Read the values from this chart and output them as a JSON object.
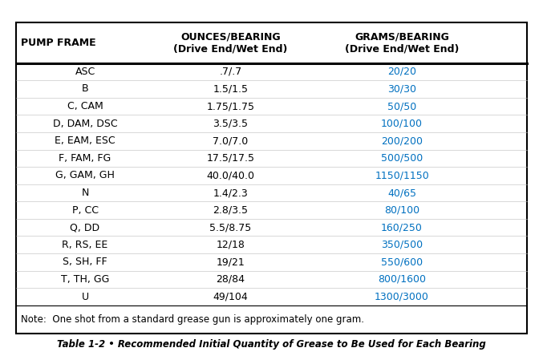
{
  "title": "Table 1-2 • Recommended Initial Quantity of Grease to Be Used for Each Bearing",
  "header_col1": "PUMP FRAME",
  "header_col2": "OUNCES/BEARING\n(Drive End/Wet End)",
  "header_col3": "GRAMS/BEARING\n(Drive End/Wet End)",
  "note": "Note:  One shot from a standard grease gun is approximately one gram.",
  "rows": [
    [
      "ASC",
      ".7/.7",
      "20/20"
    ],
    [
      "B",
      "1.5/1.5",
      "30/30"
    ],
    [
      "C, CAM",
      "1.75/1.75",
      "50/50"
    ],
    [
      "D, DAM, DSC",
      "3.5/3.5",
      "100/100"
    ],
    [
      "E, EAM, ESC",
      "7.0/7.0",
      "200/200"
    ],
    [
      "F, FAM, FG",
      "17.5/17.5",
      "500/500"
    ],
    [
      "G, GAM, GH",
      "40.0/40.0",
      "1150/1150"
    ],
    [
      "N",
      "1.4/2.3",
      "40/65"
    ],
    [
      "P, CC",
      "2.8/3.5",
      "80/100"
    ],
    [
      "Q, DD",
      "5.5/8.75",
      "160/250"
    ],
    [
      "R, RS, EE",
      "12/18",
      "350/500"
    ],
    [
      "S, SH, FF",
      "19/21",
      "550/600"
    ],
    [
      "T, TH, GG",
      "28/84",
      "800/1600"
    ],
    [
      "U",
      "49/104",
      "1300/3000"
    ]
  ],
  "header_color": "#000000",
  "row_text_color": "#000000",
  "col2_color": "#000000",
  "col3_color": "#0070c0",
  "border_color": "#000000",
  "bg_color": "#ffffff",
  "outer_border_lw": 1.5,
  "header_fontsize": 9.0,
  "row_fontsize": 9.0,
  "note_fontsize": 8.5,
  "title_fontsize": 8.5
}
